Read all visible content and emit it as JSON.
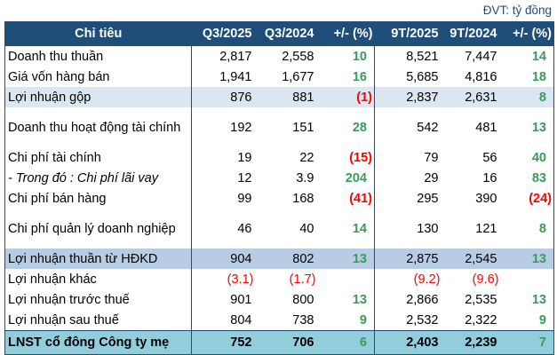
{
  "unit_label": "ĐVT: tỷ đồng",
  "colors": {
    "header_bg": "#1F4E79",
    "highlight_light": "#DCE6F1",
    "highlight_mid": "#B8CCE4",
    "total_row": "#92CDDC",
    "positive": "#3A9A5B",
    "negative": "#FF0000"
  },
  "headers": [
    "Chỉ tiêu",
    "Q3/2025",
    "Q3/2024",
    "+/- (%)",
    "9T/2025",
    "9T/2024",
    "+/- (%)"
  ],
  "rows": [
    {
      "label": "Doanh thu thuần",
      "q3_2025": "2,817",
      "q3_2024": "2,558",
      "q_pct": "10",
      "t9_2025": "8,521",
      "t9_2024": "7,447",
      "t_pct": "14"
    },
    {
      "label": "Giá vốn hàng bán",
      "q3_2025": "1,941",
      "q3_2024": "1,677",
      "q_pct": "16",
      "t9_2025": "5,685",
      "t9_2024": "4,816",
      "t_pct": "18"
    },
    {
      "label": "Lợi nhuận gộp",
      "q3_2025": "876",
      "q3_2024": "881",
      "q_pct": "(1)",
      "t9_2025": "2,837",
      "t9_2024": "2,631",
      "t_pct": "8"
    },
    {
      "label": "Doanh thu hoạt động tài chính",
      "q3_2025": "192",
      "q3_2024": "151",
      "q_pct": "28",
      "t9_2025": "542",
      "t9_2024": "481",
      "t_pct": "13"
    },
    {
      "label": "Chi phí tài chính",
      "q3_2025": "19",
      "q3_2024": "22",
      "q_pct": "(15)",
      "t9_2025": "79",
      "t9_2024": "56",
      "t_pct": "40"
    },
    {
      "label": "- Trong đó : Chi phí lãi vay",
      "q3_2025": "12",
      "q3_2024": "3.9",
      "q_pct": "204",
      "t9_2025": "29",
      "t9_2024": "16",
      "t_pct": "83"
    },
    {
      "label": "Chi phí bán hàng",
      "q3_2025": "99",
      "q3_2024": "168",
      "q_pct": "(41)",
      "t9_2025": "295",
      "t9_2024": "390",
      "t_pct": "(24)"
    },
    {
      "label": "Chi phí quản lý doanh nghiệp",
      "q3_2025": "46",
      "q3_2024": "40",
      "q_pct": "14",
      "t9_2025": "130",
      "t9_2024": "121",
      "t_pct": "8"
    },
    {
      "label": "Lợi nhuận thuần từ HĐKD",
      "q3_2025": "904",
      "q3_2024": "802",
      "q_pct": "13",
      "t9_2025": "2,875",
      "t9_2024": "2,545",
      "t_pct": "13"
    },
    {
      "label": "Lợi nhuận khác",
      "q3_2025": "(3.1)",
      "q3_2024": "(1.7)",
      "q_pct": "",
      "t9_2025": "(9.2)",
      "t9_2024": "(9.6)",
      "t_pct": ""
    },
    {
      "label": "Lợi nhuận trước thuế",
      "q3_2025": "901",
      "q3_2024": "800",
      "q_pct": "13",
      "t9_2025": "2,866",
      "t9_2024": "2,535",
      "t_pct": "13"
    },
    {
      "label": "Lợi nhuận sau thuế",
      "q3_2025": "804",
      "q3_2024": "738",
      "q_pct": "9",
      "t9_2025": "2,532",
      "t9_2024": "2,322",
      "t_pct": "9"
    },
    {
      "label": "LNST cổ đông Công ty mẹ",
      "q3_2025": "752",
      "q3_2024": "706",
      "q_pct": "6",
      "t9_2025": "2,403",
      "t9_2024": "2,239",
      "t_pct": "7"
    }
  ]
}
